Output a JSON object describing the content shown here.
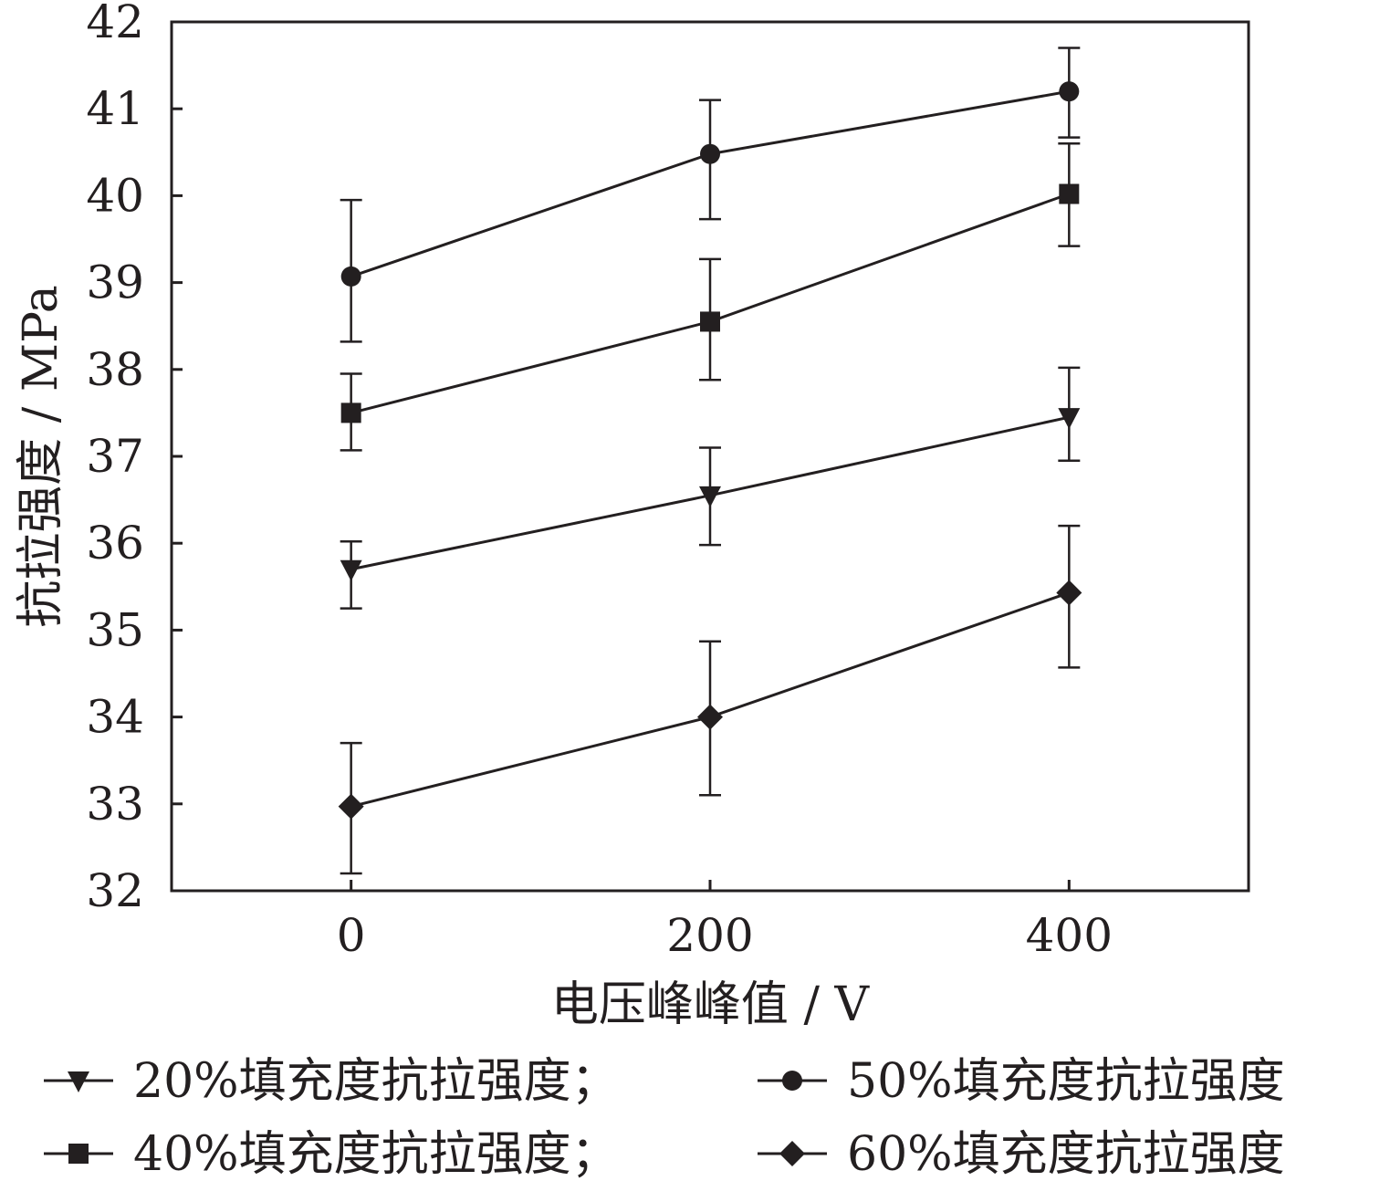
{
  "chart_data": {
    "type": "line",
    "xlabel": "电压峰峰值 / V",
    "ylabel": "抗拉强度 / MPa",
    "xlim": [
      -100,
      500
    ],
    "ylim": [
      32,
      42
    ],
    "x": [
      0,
      200,
      400
    ],
    "xticks": [
      "0",
      "200",
      "400"
    ],
    "yticks": [
      "32",
      "33",
      "34",
      "35",
      "36",
      "37",
      "38",
      "39",
      "40",
      "41",
      "42"
    ],
    "grid": false,
    "legend_position": "bottom",
    "series": [
      {
        "name": "20%填充度抗拉强度；",
        "marker": "triangle-down",
        "values": [
          35.7,
          36.55,
          37.45
        ],
        "error_high": [
          36.02,
          37.1,
          38.02
        ],
        "error_low": [
          35.25,
          35.98,
          36.95
        ]
      },
      {
        "name": "40%填充度抗拉强度；",
        "marker": "square",
        "values": [
          37.5,
          38.55,
          40.02
        ],
        "error_high": [
          37.95,
          39.27,
          40.6
        ],
        "error_low": [
          37.07,
          37.88,
          39.42
        ]
      },
      {
        "name": "50%填充度抗拉强度",
        "marker": "circle",
        "values": [
          39.07,
          40.48,
          41.2
        ],
        "error_high": [
          39.95,
          41.1,
          41.7
        ],
        "error_low": [
          38.32,
          39.73,
          40.67
        ]
      },
      {
        "name": "60%填充度抗拉强度",
        "marker": "diamond",
        "values": [
          32.97,
          34.0,
          35.43
        ],
        "error_high": [
          33.7,
          34.87,
          36.2
        ],
        "error_low": [
          32.2,
          33.1,
          34.57
        ]
      }
    ],
    "legend_layout": [
      [
        "20%填充度抗拉强度；",
        "50%填充度抗拉强度"
      ],
      [
        "40%填充度抗拉强度；",
        "60%填充度抗拉强度"
      ]
    ],
    "line_color": "#231f20"
  }
}
